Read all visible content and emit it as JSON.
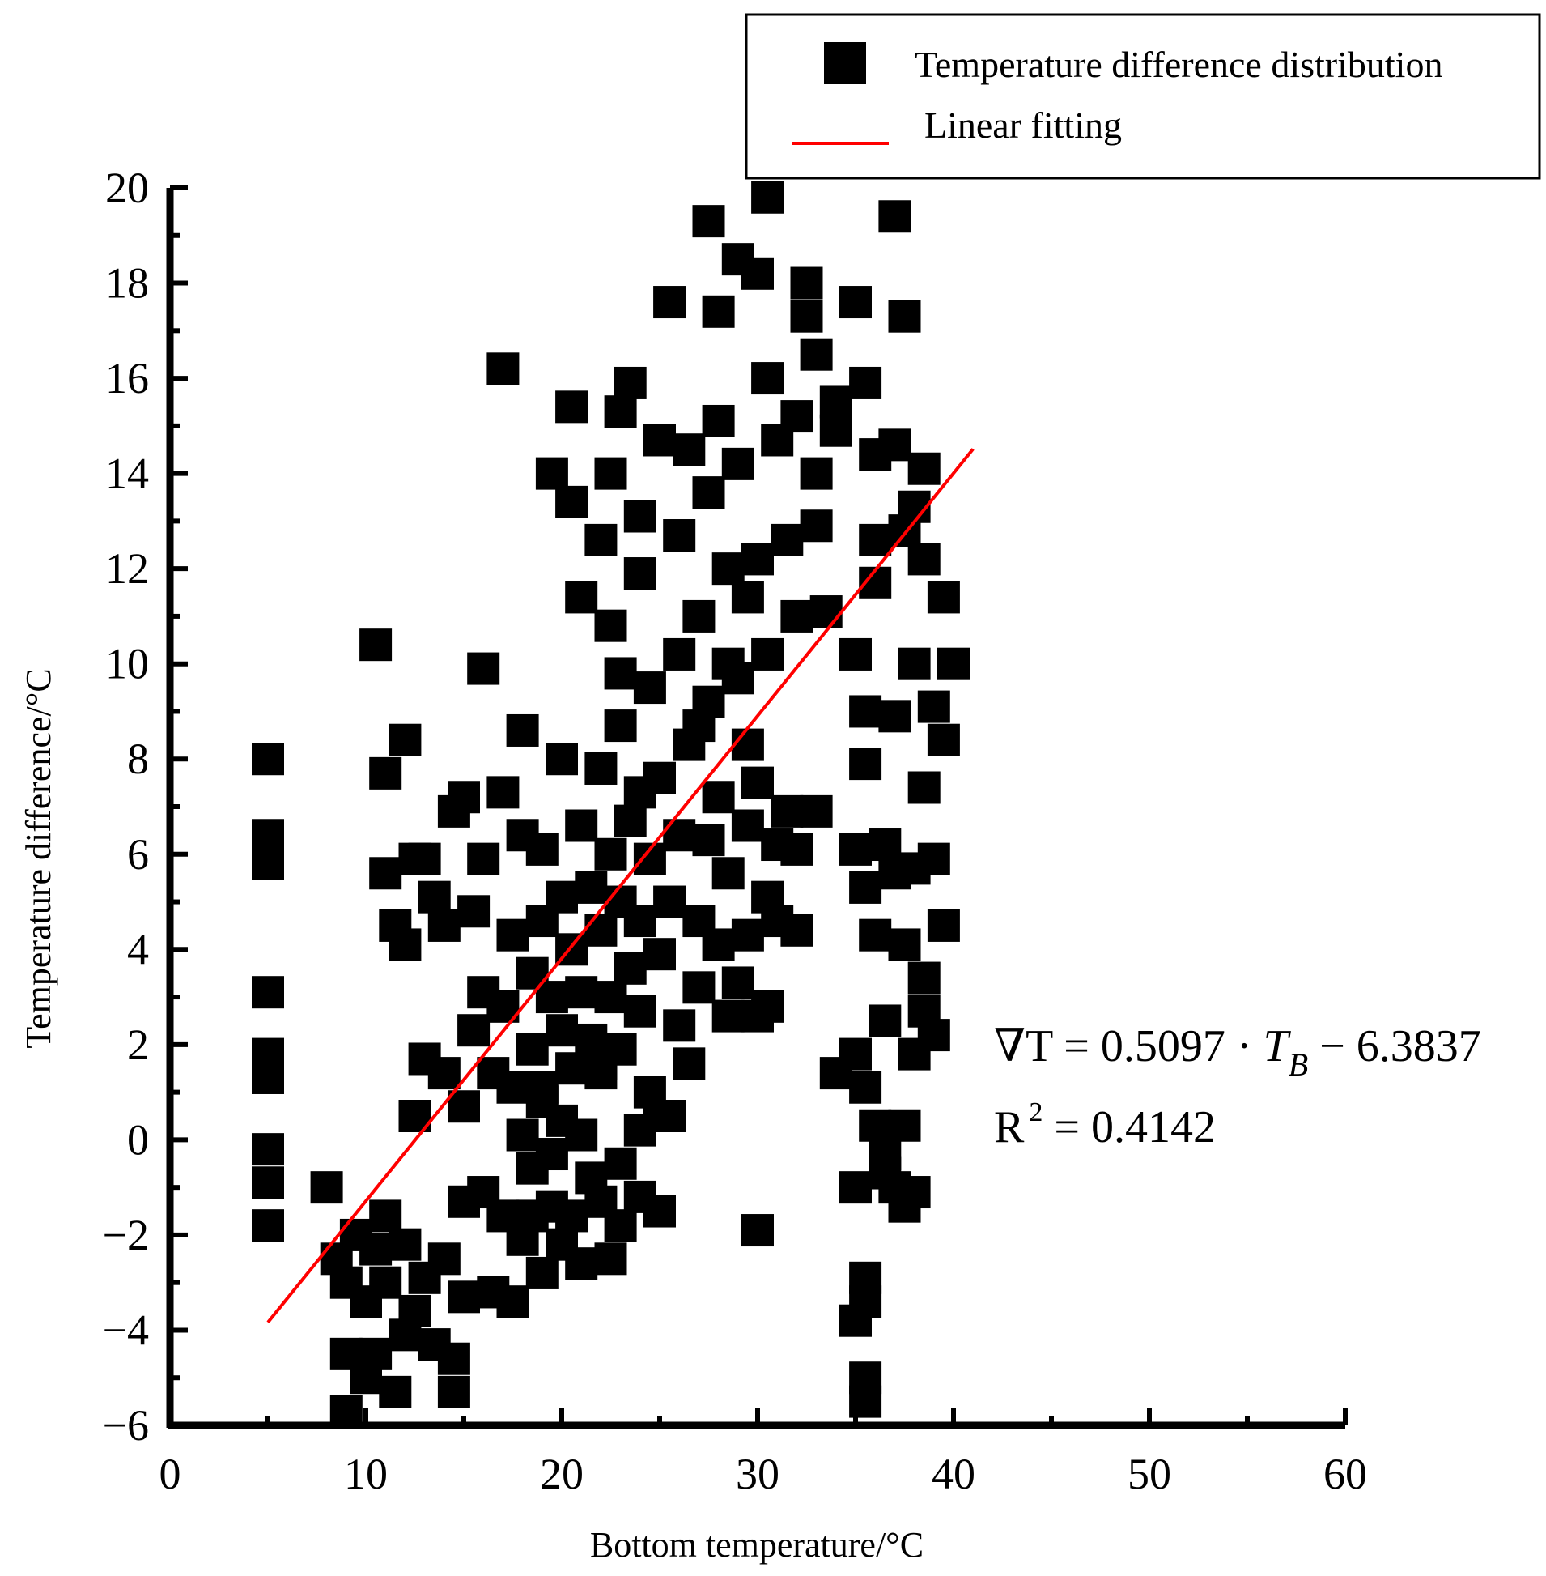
{
  "chart_data": {
    "type": "scatter",
    "xlabel": "Bottom temperature/°C",
    "ylabel": "Temperature difference/°C",
    "xlim": [
      0,
      60
    ],
    "ylim": [
      -6,
      20
    ],
    "x_ticks": [
      "0",
      "10",
      "20",
      "30",
      "40",
      "50",
      "60"
    ],
    "y_ticks": [
      "−6",
      "−4",
      "−2",
      "0",
      "2",
      "4",
      "6",
      "8",
      "10",
      "12",
      "14",
      "16",
      "18",
      "20"
    ],
    "grid": false,
    "legend_position": "top-right",
    "legend": [
      {
        "label": "Temperature difference distribution",
        "marker": "square",
        "color": "#000000"
      },
      {
        "label": "Linear fitting",
        "marker": "line",
        "color": "#ff0000"
      }
    ],
    "series": [
      {
        "name": "Temperature difference distribution",
        "color": "#000000",
        "points": [
          [
            5,
            8
          ],
          [
            5,
            6.4
          ],
          [
            5,
            5.8
          ],
          [
            5,
            3.1
          ],
          [
            5,
            1.8
          ],
          [
            5,
            1.3
          ],
          [
            5,
            -0.2
          ],
          [
            5,
            -0.9
          ],
          [
            5,
            -1.8
          ],
          [
            8,
            -1
          ],
          [
            8.5,
            -2.5
          ],
          [
            9,
            -3
          ],
          [
            9,
            -4.5
          ],
          [
            9,
            -5.7
          ],
          [
            9.5,
            -2
          ],
          [
            10,
            -3.4
          ],
          [
            10,
            -5
          ],
          [
            10.5,
            -2.3
          ],
          [
            10.5,
            -4.5
          ],
          [
            11,
            -1.6
          ],
          [
            11,
            -3
          ],
          [
            11.5,
            -5.3
          ],
          [
            12,
            -2.2
          ],
          [
            12,
            -4.1
          ],
          [
            12.5,
            -3.6
          ],
          [
            13,
            -2.9
          ],
          [
            13.5,
            -4.3
          ],
          [
            14,
            -2.5
          ],
          [
            14.5,
            -4.6
          ],
          [
            14.5,
            -5.3
          ],
          [
            15,
            -1.3
          ],
          [
            15,
            -3.3
          ],
          [
            16,
            -1.1
          ],
          [
            16.5,
            -3.2
          ],
          [
            17,
            -1.6
          ],
          [
            17.5,
            -3.4
          ],
          [
            18,
            -2.1
          ],
          [
            18.5,
            -1.6
          ],
          [
            19,
            -2.8
          ],
          [
            19.5,
            -1.4
          ],
          [
            20,
            -2.2
          ],
          [
            20.5,
            -1.6
          ],
          [
            21,
            -2.6
          ],
          [
            22,
            -1.3
          ],
          [
            22.5,
            -2.5
          ],
          [
            23,
            -1.8
          ],
          [
            24,
            -1.2
          ],
          [
            25,
            -1.5
          ],
          [
            10.5,
            10.4
          ],
          [
            11,
            5.6
          ],
          [
            11.5,
            4.5
          ],
          [
            11,
            7.7
          ],
          [
            12,
            4.1
          ],
          [
            12,
            8.4
          ],
          [
            12.5,
            5.9
          ],
          [
            13,
            5.9
          ],
          [
            13.5,
            5.1
          ],
          [
            14,
            4.5
          ],
          [
            14.5,
            6.9
          ],
          [
            15,
            7.2
          ],
          [
            15.5,
            4.8
          ],
          [
            16,
            9.9
          ],
          [
            16,
            5.9
          ],
          [
            17,
            16.2
          ],
          [
            17,
            7.3
          ],
          [
            17.5,
            4.3
          ],
          [
            18,
            6.4
          ],
          [
            18,
            8.6
          ],
          [
            12.5,
            0.5
          ],
          [
            13,
            1.7
          ],
          [
            14,
            1.4
          ],
          [
            15,
            0.7
          ],
          [
            15.5,
            2.3
          ],
          [
            16,
            3.1
          ],
          [
            16.5,
            1.4
          ],
          [
            17,
            2.8
          ],
          [
            17.5,
            1.1
          ],
          [
            18,
            0.1
          ],
          [
            18.5,
            3.5
          ],
          [
            18.5,
            1.9
          ],
          [
            19,
            4.6
          ],
          [
            19,
            6.1
          ],
          [
            19,
            0.8
          ],
          [
            19.5,
            3
          ],
          [
            19.5,
            -0.3
          ],
          [
            20,
            5.1
          ],
          [
            20,
            2.3
          ],
          [
            20,
            8
          ],
          [
            20.5,
            4
          ],
          [
            20.5,
            1.5
          ],
          [
            21,
            6.6
          ],
          [
            21,
            3.1
          ],
          [
            21,
            0.1
          ],
          [
            21.5,
            5.3
          ],
          [
            21.5,
            2.1
          ],
          [
            22,
            7.8
          ],
          [
            22,
            4.4
          ],
          [
            22,
            1.4
          ],
          [
            22.5,
            6
          ],
          [
            22.5,
            3
          ],
          [
            23,
            8.7
          ],
          [
            23,
            5
          ],
          [
            23,
            1.9
          ],
          [
            23.5,
            6.7
          ],
          [
            23.5,
            3.6
          ],
          [
            24,
            7.3
          ],
          [
            24,
            4.6
          ],
          [
            24,
            2.7
          ],
          [
            24.5,
            9.5
          ],
          [
            24.5,
            5.9
          ],
          [
            25,
            3.9
          ],
          [
            25,
            7.6
          ],
          [
            25.5,
            0.5
          ],
          [
            25.5,
            5
          ],
          [
            26,
            6.4
          ],
          [
            26,
            2.4
          ],
          [
            26.5,
            8.3
          ],
          [
            26.5,
            1.6
          ],
          [
            27,
            4.6
          ],
          [
            27,
            3.2
          ],
          [
            27.5,
            6.3
          ],
          [
            27.5,
            9.2
          ],
          [
            28,
            4.1
          ],
          [
            28,
            7.2
          ],
          [
            28.5,
            2.6
          ],
          [
            28.5,
            5.6
          ],
          [
            29,
            3.3
          ],
          [
            29,
            9.7
          ],
          [
            29.5,
            6.6
          ],
          [
            29.5,
            4.3
          ],
          [
            30,
            2.6
          ],
          [
            30,
            7.5
          ],
          [
            30.5,
            5.1
          ],
          [
            30.5,
            2.8
          ],
          [
            31,
            6.2
          ],
          [
            31,
            4.6
          ],
          [
            31.5,
            6.9
          ],
          [
            32,
            4.4
          ],
          [
            20.5,
            15.4
          ],
          [
            19.5,
            14
          ],
          [
            20.5,
            13.4
          ],
          [
            21,
            11.4
          ],
          [
            22,
            12.6
          ],
          [
            22.5,
            10.8
          ],
          [
            23,
            15.3
          ],
          [
            23.5,
            15.9
          ],
          [
            22.5,
            14
          ],
          [
            23,
            9.8
          ],
          [
            24,
            11.9
          ],
          [
            24,
            13.1
          ],
          [
            25,
            14.7
          ],
          [
            25.5,
            17.6
          ],
          [
            26,
            12.7
          ],
          [
            26,
            10.2
          ],
          [
            26.5,
            14.5
          ],
          [
            27,
            11
          ],
          [
            27,
            8.7
          ],
          [
            27.5,
            19.3
          ],
          [
            27.5,
            13.6
          ],
          [
            28,
            17.4
          ],
          [
            28,
            15.1
          ],
          [
            28.5,
            12
          ],
          [
            28.5,
            10
          ],
          [
            29,
            18.5
          ],
          [
            29,
            14.2
          ],
          [
            29.5,
            11.4
          ],
          [
            29.5,
            8.3
          ],
          [
            30,
            18.2
          ],
          [
            30,
            12.2
          ],
          [
            30.5,
            19.8
          ],
          [
            30.5,
            16
          ],
          [
            30.5,
            10.2
          ],
          [
            31,
            14.7
          ],
          [
            31.5,
            12.6
          ],
          [
            32,
            15.2
          ],
          [
            32,
            11
          ],
          [
            32.5,
            18
          ],
          [
            32.5,
            17.3
          ],
          [
            33,
            16.5
          ],
          [
            33,
            14
          ],
          [
            33,
            12.9
          ],
          [
            33.5,
            11.1
          ],
          [
            34,
            14.9
          ],
          [
            34,
            15.5
          ],
          [
            35,
            17.6
          ],
          [
            35.5,
            15.9
          ],
          [
            36,
            14.4
          ],
          [
            36,
            12.6
          ],
          [
            35,
            10.2
          ],
          [
            35.5,
            9
          ],
          [
            36,
            11.7
          ],
          [
            37,
            19.4
          ],
          [
            37,
            14.6
          ],
          [
            37.5,
            12.8
          ],
          [
            37.5,
            17.3
          ],
          [
            38,
            13.3
          ],
          [
            38,
            10
          ],
          [
            38.5,
            14.1
          ],
          [
            38.5,
            12.2
          ],
          [
            39.5,
            11.4
          ],
          [
            40,
            10
          ],
          [
            39,
            9.1
          ],
          [
            39.5,
            8.4
          ],
          [
            38.5,
            7.4
          ],
          [
            37,
            8.9
          ],
          [
            35.5,
            7.9
          ],
          [
            33,
            6.9
          ],
          [
            32,
            6.1
          ],
          [
            35,
            6.1
          ],
          [
            35.5,
            5.3
          ],
          [
            36,
            4.3
          ],
          [
            36.5,
            6.2
          ],
          [
            37,
            5.6
          ],
          [
            37.5,
            4.1
          ],
          [
            38,
            5.7
          ],
          [
            38.5,
            3.4
          ],
          [
            39,
            5.9
          ],
          [
            39.5,
            4.5
          ],
          [
            38.5,
            2.7
          ],
          [
            39,
            2.2
          ],
          [
            38,
            1.8
          ],
          [
            36.5,
            2.5
          ],
          [
            35,
            1.8
          ],
          [
            35.5,
            1.1
          ],
          [
            36,
            0.3
          ],
          [
            36.5,
            -0.3
          ],
          [
            37,
            -1
          ],
          [
            37.5,
            -1.4
          ],
          [
            35,
            -1
          ],
          [
            37.5,
            0.3
          ],
          [
            38,
            -1.1
          ],
          [
            36.5,
            -0.7
          ],
          [
            34,
            1.4
          ],
          [
            35.5,
            -2.9
          ],
          [
            35.5,
            -3.4
          ],
          [
            35,
            -3.8
          ],
          [
            35.5,
            -5
          ],
          [
            35.5,
            -5.5
          ],
          [
            30,
            -1.9
          ],
          [
            25,
            0.5
          ],
          [
            20,
            0.4
          ],
          [
            21.5,
            -0.8
          ],
          [
            23,
            -0.5
          ],
          [
            24,
            0.2
          ],
          [
            18.5,
            -0.6
          ],
          [
            19,
            1.1
          ],
          [
            22,
            1.6
          ],
          [
            24.5,
            1
          ]
        ]
      },
      {
        "name": "Linear fitting",
        "color": "#ff0000",
        "slope": 0.5097,
        "intercept": -6.3837,
        "x_range": [
          5,
          41
        ]
      }
    ],
    "annotations": {
      "equation_lhs": "∇T = 0.5097 · ",
      "equation_var": "T",
      "equation_sub": "B",
      "equation_rhs": " − 6.3837",
      "r2_label": "R",
      "r2_sup": "2",
      "r2_rhs": " = 0.4142"
    }
  }
}
